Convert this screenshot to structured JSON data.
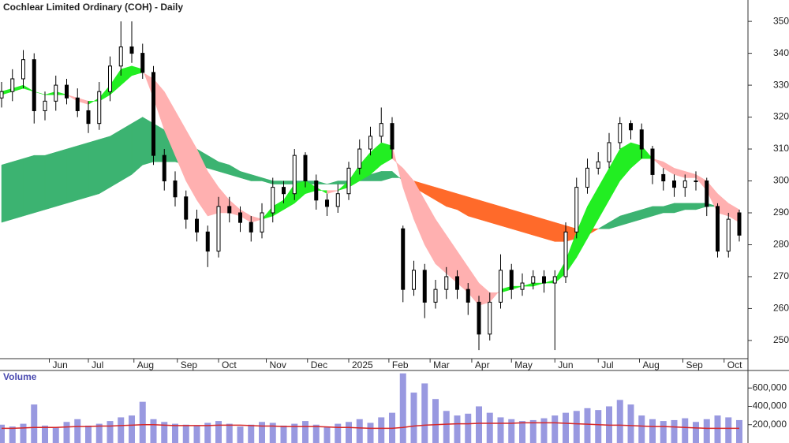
{
  "chart_data": [
    {
      "type": "candlestick",
      "title": "Cochlear Limited Ordinary (COH) - Daily",
      "x": [
        0,
        5,
        10,
        15,
        20,
        25,
        30,
        35,
        40,
        45,
        50,
        55,
        60,
        65,
        70,
        75,
        80,
        85,
        90,
        95,
        100,
        105,
        110,
        115,
        120,
        125,
        130,
        135,
        140,
        145,
        150,
        155,
        160,
        165,
        170,
        175,
        180,
        185,
        190,
        195,
        200,
        205,
        210,
        215,
        220,
        225,
        230,
        235,
        240,
        245,
        250,
        255,
        260,
        265,
        270,
        275,
        280,
        285,
        290,
        295,
        300,
        305,
        310,
        315,
        320,
        325,
        330,
        335,
        340
      ],
      "open": [
        326,
        328,
        332,
        338,
        322,
        325,
        330,
        326,
        322,
        318,
        328,
        336,
        342,
        340,
        334,
        308,
        300,
        295,
        288,
        284,
        278,
        292,
        290,
        287,
        284,
        290,
        298,
        296,
        308,
        300,
        294,
        292,
        296,
        304,
        310,
        314,
        318,
        285,
        266,
        272,
        262,
        266,
        270,
        266,
        262,
        252,
        262,
        272,
        266,
        268,
        270,
        268,
        270,
        284,
        298,
        304,
        306,
        312,
        318,
        316,
        310,
        302,
        300,
        298,
        300,
        300,
        292,
        278,
        290
      ],
      "high": [
        331,
        335,
        341,
        340,
        328,
        333,
        332,
        329,
        325,
        331,
        339,
        350,
        350,
        343,
        336,
        310,
        303,
        297,
        291,
        286,
        295,
        295,
        292,
        289,
        293,
        301,
        300,
        310,
        309,
        302,
        296,
        299,
        306,
        313,
        317,
        323,
        320,
        286,
        275,
        274,
        269,
        273,
        272,
        268,
        264,
        265,
        277,
        274,
        271,
        272,
        272,
        272,
        287,
        301,
        307,
        309,
        315,
        320,
        319,
        318,
        311,
        304,
        302,
        302,
        303,
        301,
        293,
        290,
        291
      ],
      "low": [
        323,
        325,
        329,
        318,
        319,
        322,
        324,
        320,
        315,
        316,
        325,
        333,
        337,
        332,
        305,
        297,
        292,
        285,
        281,
        273,
        276,
        287,
        284,
        281,
        282,
        287,
        293,
        294,
        298,
        291,
        289,
        290,
        294,
        302,
        308,
        312,
        307,
        262,
        264,
        257,
        260,
        263,
        263,
        258,
        247,
        250,
        260,
        263,
        264,
        266,
        265,
        247,
        268,
        282,
        296,
        302,
        304,
        310,
        313,
        307,
        299,
        297,
        295,
        295,
        297,
        289,
        276,
        276,
        281
      ],
      "close": [
        328,
        332,
        338,
        322,
        325,
        330,
        326,
        322,
        318,
        328,
        336,
        342,
        340,
        334,
        308,
        300,
        295,
        288,
        284,
        278,
        292,
        290,
        287,
        284,
        290,
        298,
        296,
        308,
        300,
        294,
        292,
        296,
        304,
        310,
        314,
        318,
        310,
        266,
        272,
        262,
        266,
        270,
        266,
        262,
        252,
        262,
        272,
        266,
        268,
        270,
        268,
        270,
        284,
        298,
        304,
        306,
        312,
        318,
        316,
        310,
        302,
        300,
        298,
        300,
        300,
        292,
        278,
        288,
        283
      ],
      "candle_color": "#000000",
      "bands": [
        {
          "fast": [
            305,
            306,
            307,
            308,
            308,
            309,
            310,
            311,
            312,
            313,
            314,
            316,
            318,
            320,
            318,
            316,
            314,
            312,
            310,
            308,
            306,
            305,
            303,
            302,
            301,
            300,
            300,
            300,
            300,
            300,
            299,
            300,
            300,
            301,
            302,
            303,
            303,
            300,
            298,
            296,
            294,
            292,
            291,
            289,
            288,
            287,
            286,
            285,
            284,
            283,
            282,
            281,
            281,
            282,
            283,
            285,
            287,
            289,
            290,
            291,
            292,
            292,
            293,
            293,
            293,
            293,
            292,
            291,
            290
          ],
          "slow": [
            287,
            288,
            289,
            290,
            291,
            292,
            293,
            294,
            295,
            296,
            298,
            300,
            302,
            305,
            306,
            306,
            306,
            305,
            305,
            304,
            303,
            302,
            301,
            300,
            300,
            299,
            299,
            299,
            299,
            299,
            299,
            299,
            299,
            300,
            300,
            300,
            301,
            301,
            300,
            299,
            298,
            297,
            296,
            295,
            294,
            293,
            292,
            291,
            290,
            289,
            288,
            287,
            286,
            285,
            285,
            285,
            285,
            286,
            287,
            288,
            289,
            290,
            290,
            291,
            291,
            292,
            292,
            292,
            291
          ],
          "up_color": "#3cb371",
          "down_color": "#ff6a2a"
        },
        {
          "fast": [
            328,
            329,
            330,
            328,
            327,
            328,
            327,
            325,
            324,
            326,
            330,
            335,
            336,
            335,
            326,
            316,
            308,
            300,
            294,
            289,
            290,
            290,
            289,
            287,
            288,
            292,
            294,
            299,
            300,
            298,
            296,
            297,
            300,
            305,
            309,
            312,
            311,
            298,
            288,
            280,
            274,
            271,
            268,
            265,
            261,
            262,
            266,
            267,
            267,
            268,
            268,
            269,
            275,
            284,
            292,
            298,
            304,
            310,
            312,
            311,
            307,
            304,
            302,
            301,
            301,
            297,
            290,
            289,
            287
          ],
          "slow": [
            327,
            328,
            329,
            328,
            327,
            327,
            327,
            326,
            325,
            325,
            327,
            330,
            333,
            334,
            332,
            328,
            322,
            316,
            310,
            303,
            298,
            294,
            291,
            289,
            288,
            289,
            291,
            293,
            296,
            297,
            297,
            297,
            298,
            300,
            302,
            305,
            307,
            304,
            300,
            294,
            288,
            283,
            278,
            273,
            268,
            265,
            265,
            266,
            267,
            267,
            268,
            268,
            271,
            276,
            282,
            288,
            294,
            300,
            304,
            307,
            307,
            306,
            304,
            303,
            302,
            300,
            296,
            293,
            291
          ],
          "up_color": "#22ee22",
          "down_color": "#ffb0b0"
        }
      ],
      "xlim": [
        0,
        344
      ],
      "xticks": [
        {
          "value": 22,
          "label": "Jun"
        },
        {
          "value": 40,
          "label": "Jul"
        },
        {
          "value": 61,
          "label": "Aug"
        },
        {
          "value": 81,
          "label": "Sep"
        },
        {
          "value": 100,
          "label": "Oct"
        },
        {
          "value": 122,
          "label": "Nov"
        },
        {
          "value": 141,
          "label": "Dec"
        },
        {
          "value": 160,
          "label": "2025"
        },
        {
          "value": 178.5,
          "label": "Feb"
        },
        {
          "value": 197.5,
          "label": "Mar"
        },
        {
          "value": 216.7,
          "label": "Apr"
        },
        {
          "value": 235,
          "label": "May"
        },
        {
          "value": 255,
          "label": "Jun"
        },
        {
          "value": 275,
          "label": "Jul"
        },
        {
          "value": 294,
          "label": "Aug"
        },
        {
          "value": 314,
          "label": "Sep"
        },
        {
          "value": 333,
          "label": "Oct"
        }
      ],
      "ylim": [
        244.3,
        356.7
      ],
      "yticks": [
        250,
        260,
        270,
        280,
        290,
        300,
        310,
        320,
        330,
        340,
        350
      ]
    },
    {
      "type": "bar",
      "title": "Volume",
      "x": [
        0,
        5,
        10,
        15,
        20,
        25,
        30,
        35,
        40,
        45,
        50,
        55,
        60,
        65,
        70,
        75,
        80,
        85,
        90,
        95,
        100,
        105,
        110,
        115,
        120,
        125,
        130,
        135,
        140,
        145,
        150,
        155,
        160,
        165,
        170,
        175,
        180,
        185,
        190,
        195,
        200,
        205,
        210,
        215,
        220,
        225,
        230,
        235,
        240,
        245,
        250,
        255,
        260,
        265,
        270,
        275,
        280,
        285,
        290,
        295,
        300,
        305,
        310,
        315,
        320,
        325,
        330,
        335,
        340
      ],
      "values": [
        200000,
        180000,
        210000,
        420000,
        190000,
        170000,
        230000,
        260000,
        190000,
        210000,
        240000,
        280000,
        300000,
        450000,
        260000,
        230000,
        210000,
        200000,
        190000,
        220000,
        240000,
        210000,
        180000,
        200000,
        230000,
        220000,
        190000,
        210000,
        240000,
        200000,
        180000,
        210000,
        230000,
        260000,
        220000,
        280000,
        330000,
        760000,
        550000,
        650000,
        480000,
        350000,
        300000,
        320000,
        400000,
        330000,
        280000,
        260000,
        240000,
        250000,
        270000,
        300000,
        330000,
        350000,
        380000,
        360000,
        400000,
        470000,
        420000,
        300000,
        260000,
        240000,
        250000,
        270000,
        230000,
        260000,
        300000,
        280000,
        250000
      ],
      "color": "#8080d8",
      "line": {
        "color": "#d62728",
        "values": [
          160000,
          160000,
          165000,
          170000,
          170000,
          170000,
          175000,
          180000,
          180000,
          185000,
          185000,
          190000,
          195000,
          200000,
          200000,
          195000,
          190000,
          190000,
          190000,
          190000,
          195000,
          195000,
          195000,
          190000,
          185000,
          185000,
          180000,
          180000,
          180000,
          180000,
          175000,
          170000,
          170000,
          165000,
          160000,
          160000,
          160000,
          170000,
          185000,
          195000,
          200000,
          205000,
          210000,
          210000,
          215000,
          215000,
          215000,
          215000,
          220000,
          220000,
          220000,
          220000,
          215000,
          210000,
          205000,
          200000,
          195000,
          195000,
          190000,
          185000,
          180000,
          180000,
          175000,
          170000,
          165000,
          160000,
          160000,
          160000,
          160000
        ]
      },
      "xlim": [
        0,
        344
      ],
      "ylim": [
        0,
        791300
      ],
      "yticks": [
        {
          "value": 200000,
          "label": "200,000"
        },
        {
          "value": 400000,
          "label": "400,000"
        },
        {
          "value": 600000,
          "label": "600,000"
        }
      ]
    }
  ]
}
